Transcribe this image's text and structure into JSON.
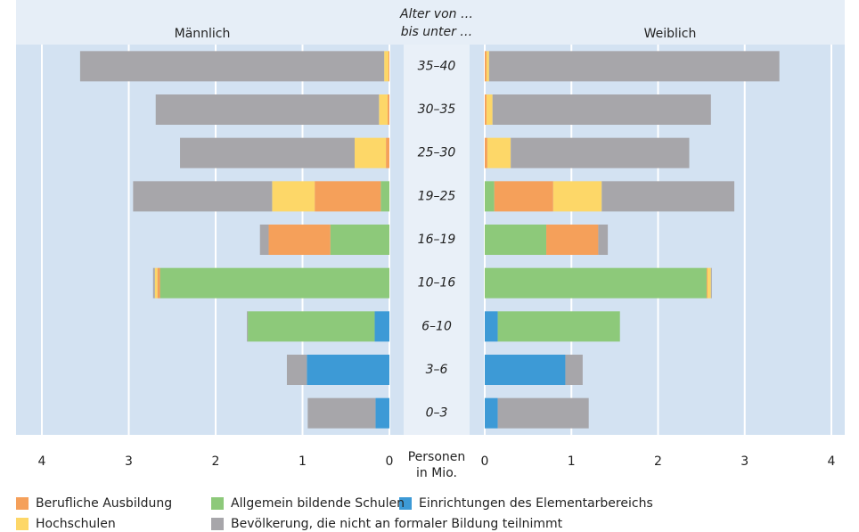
{
  "chart_data": {
    "type": "bar",
    "orientation": "horizontal",
    "panels": [
      "Männlich",
      "Weiblich"
    ],
    "y_title": [
      "Alter von …",
      "bis unter …"
    ],
    "x_title": [
      "Personen",
      "in Mio."
    ],
    "categories": [
      "35–40",
      "30–35",
      "25–30",
      "19–25",
      "16–19",
      "10–16",
      "6–10",
      "3–6",
      "0–3"
    ],
    "series": [
      {
        "name": "Einrichtungen des Elementarbereichs",
        "color": "#3d9ad6",
        "male": [
          0,
          0,
          0,
          0,
          0,
          0,
          0.17,
          0.95,
          0.16
        ],
        "female": [
          0,
          0,
          0,
          0,
          0,
          0,
          0.15,
          0.93,
          0.15
        ]
      },
      {
        "name": "Allgemein bildende Schulen",
        "color": "#8dc97a",
        "male": [
          0,
          0,
          0,
          0.1,
          0.68,
          2.64,
          1.46,
          0,
          0
        ],
        "female": [
          0,
          0,
          0,
          0.11,
          0.71,
          2.56,
          1.41,
          0,
          0
        ]
      },
      {
        "name": "Berufliche Ausbildung",
        "color": "#f5a05a",
        "male": [
          0.01,
          0.02,
          0.04,
          0.76,
          0.71,
          0.03,
          0,
          0,
          0
        ],
        "female": [
          0.02,
          0.02,
          0.03,
          0.68,
          0.6,
          0.01,
          0,
          0,
          0
        ]
      },
      {
        "name": "Hochschulen",
        "color": "#fdd768",
        "male": [
          0.05,
          0.1,
          0.36,
          0.49,
          0,
          0.03,
          0,
          0,
          0
        ],
        "female": [
          0.03,
          0.07,
          0.27,
          0.56,
          0,
          0.04,
          0,
          0,
          0
        ]
      },
      {
        "name": "Bevölkerung, die nicht an formaler Bildung teilnimmt",
        "color": "#a7a6aa",
        "male": [
          3.5,
          2.57,
          2.01,
          1.6,
          0.1,
          0.02,
          0.01,
          0.23,
          0.78
        ],
        "female": [
          3.35,
          2.52,
          2.06,
          1.53,
          0.11,
          0.01,
          0,
          0.2,
          1.05
        ]
      }
    ],
    "xlim": [
      0,
      4
    ],
    "xticks": [
      0,
      1,
      2,
      3,
      4
    ],
    "grid": true
  }
}
